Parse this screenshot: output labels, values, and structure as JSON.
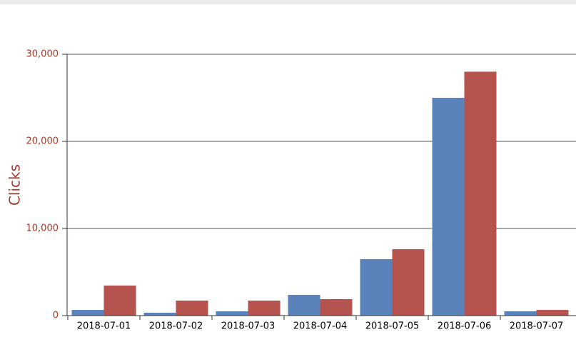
{
  "chart_data": {
    "type": "bar",
    "y_label": "Clicks",
    "categories": [
      "2018-07-01",
      "2018-07-02",
      "2018-07-03",
      "2018-07-04",
      "2018-07-05",
      "2018-07-06",
      "2018-07-07"
    ],
    "series": [
      {
        "color": "#5a83bb",
        "values": [
          650,
          330,
          490,
          2380,
          6480,
          25000,
          490
        ]
      },
      {
        "color": "#b5534f",
        "values": [
          3450,
          1720,
          1720,
          1890,
          7620,
          28000,
          650
        ]
      }
    ],
    "ylim": [
      0,
      30000
    ],
    "yticks": [
      0,
      {
        "value": 10000,
        "label": "10,000"
      },
      {
        "value": 20000,
        "label": "20,000"
      },
      {
        "value": 30000,
        "label": "30,000"
      }
    ],
    "grid": true
  }
}
